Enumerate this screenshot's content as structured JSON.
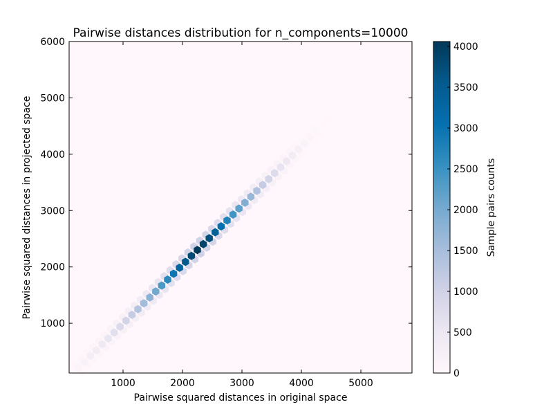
{
  "chart_data": {
    "type": "heatmap",
    "subtype": "hexbin",
    "title": "Pairwise distances distribution for n_components=10000",
    "xlabel": "Pairwise squared distances in original space",
    "ylabel": "Pairwise squared distances in projected space",
    "xlim": [
      93,
      5860
    ],
    "ylim": [
      117,
      6000
    ],
    "xticks": [
      1000,
      2000,
      3000,
      4000,
      5000
    ],
    "yticks": [
      1000,
      2000,
      3000,
      4000,
      5000,
      6000
    ],
    "grid": false,
    "colormap": [
      "#fff7fb",
      "#ece7f2",
      "#d0d1e6",
      "#a6bddb",
      "#74a9cf",
      "#3690c0",
      "#0570b0",
      "#045a8d",
      "#023858"
    ],
    "colorbar": {
      "label": "Sample pairs counts",
      "range": [
        0,
        4060
      ],
      "ticks": [
        0,
        500,
        1000,
        1500,
        2000,
        2500,
        3000,
        3500,
        4000
      ]
    },
    "bins": [
      [
        250,
        210,
        120
      ],
      [
        350,
        315,
        200
      ],
      [
        450,
        420,
        280
      ],
      [
        550,
        520,
        360
      ],
      [
        650,
        625,
        450
      ],
      [
        750,
        730,
        560
      ],
      [
        850,
        835,
        680
      ],
      [
        950,
        940,
        820
      ],
      [
        1050,
        1045,
        960
      ],
      [
        1150,
        1150,
        1150
      ],
      [
        1250,
        1250,
        1350
      ],
      [
        1350,
        1355,
        1550
      ],
      [
        1450,
        1460,
        1800
      ],
      [
        1550,
        1565,
        2050
      ],
      [
        1650,
        1670,
        2350
      ],
      [
        1750,
        1775,
        2650
      ],
      [
        1850,
        1880,
        2950
      ],
      [
        1950,
        1985,
        3300
      ],
      [
        2050,
        2090,
        3550
      ],
      [
        2150,
        2195,
        3800
      ],
      [
        2250,
        2300,
        4050
      ],
      [
        2350,
        2405,
        3900
      ],
      [
        2450,
        2510,
        3700
      ],
      [
        2550,
        2615,
        3400
      ],
      [
        2650,
        2720,
        3100
      ],
      [
        2750,
        2825,
        2750
      ],
      [
        2850,
        2930,
        2450
      ],
      [
        2950,
        3035,
        2200
      ],
      [
        3050,
        3140,
        1900
      ],
      [
        3150,
        3245,
        1650
      ],
      [
        3250,
        3350,
        1400
      ],
      [
        3350,
        3455,
        1150
      ],
      [
        3450,
        3560,
        950
      ],
      [
        3550,
        3665,
        760
      ],
      [
        3650,
        3770,
        600
      ],
      [
        3750,
        3875,
        460
      ],
      [
        3850,
        3980,
        340
      ],
      [
        3950,
        4085,
        250
      ],
      [
        4050,
        4190,
        170
      ],
      [
        4150,
        4295,
        110
      ],
      [
        4250,
        4400,
        70
      ],
      [
        4350,
        4505,
        45
      ],
      [
        4450,
        4610,
        25
      ],
      [
        4550,
        4715,
        12
      ],
      [
        4650,
        4820,
        6
      ]
    ]
  }
}
